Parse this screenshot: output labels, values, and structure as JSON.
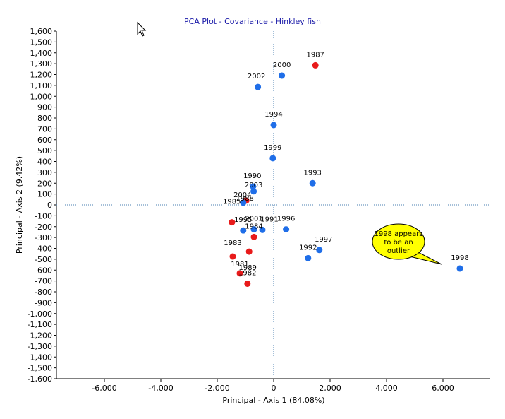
{
  "chart_data": {
    "type": "scatter",
    "title": "PCA Plot - Covariance - Hinkley fish",
    "xlabel": "Principal - Axis 1 (84.08%)",
    "ylabel": "Principal - Axis 2 (9.42%)",
    "xlim": [
      -7500,
      7500
    ],
    "ylim": [
      -1600,
      1600
    ],
    "xticks": [
      -6000,
      -4000,
      -2000,
      0,
      2000,
      4000,
      6000
    ],
    "xtick_labels": [
      "-6,000",
      "-4,000",
      "-2,000",
      "0",
      "2,000",
      "4,000",
      "6,000"
    ],
    "yticks": [
      -1600,
      -1500,
      -1400,
      -1300,
      -1200,
      -1100,
      -1000,
      -900,
      -800,
      -700,
      -600,
      -500,
      -400,
      -300,
      -200,
      -100,
      0,
      100,
      200,
      300,
      400,
      500,
      600,
      700,
      800,
      900,
      1000,
      1100,
      1200,
      1300,
      1400,
      1500,
      1600
    ],
    "ytick_labels": [
      "-1,600",
      "-1,500",
      "-1,400",
      "-1,300",
      "-1,200",
      "-1,100",
      "-1,000",
      "-900",
      "-800",
      "-700",
      "-600",
      "-500",
      "-400",
      "-300",
      "-200",
      "-100",
      "0",
      "100",
      "200",
      "300",
      "400",
      "500",
      "600",
      "700",
      "800",
      "900",
      "1,000",
      "1,100",
      "1,200",
      "1,300",
      "1,400",
      "1,500",
      "1,600"
    ],
    "grid": false,
    "reference_lines": {
      "x": 0,
      "y": 0,
      "style": "dotted",
      "color": "#4a7fb0"
    },
    "colors": {
      "blue": "#1f6ee8",
      "red": "#e81a1a"
    },
    "points": [
      {
        "label": "1987",
        "x": 1480,
        "y": 1285,
        "color": "red"
      },
      {
        "label": "2000",
        "x": 290,
        "y": 1190,
        "color": "blue"
      },
      {
        "label": "2002",
        "x": -560,
        "y": 1085,
        "color": "blue"
      },
      {
        "label": "1994",
        "x": 0,
        "y": 735,
        "color": "blue"
      },
      {
        "label": "1999",
        "x": -30,
        "y": 430,
        "color": "blue"
      },
      {
        "label": "1993",
        "x": 1380,
        "y": 200,
        "color": "blue"
      },
      {
        "label": "1990",
        "x": -730,
        "y": 170,
        "color": "blue"
      },
      {
        "label": "2003",
        "x": -710,
        "y": 125,
        "color": "blue"
      },
      {
        "label": "1988",
        "x": -970,
        "y": 40,
        "color": "red"
      },
      {
        "label": "2004",
        "x": -1080,
        "y": 20,
        "color": "blue"
      },
      {
        "label": "1985",
        "x": -1480,
        "y": -160,
        "color": "red"
      },
      {
        "label": "1995",
        "x": -1080,
        "y": -235,
        "color": "blue"
      },
      {
        "label": "2001",
        "x": -700,
        "y": -225,
        "color": "blue"
      },
      {
        "label": "1991",
        "x": -400,
        "y": -230,
        "color": "blue"
      },
      {
        "label": "1996",
        "x": 440,
        "y": -225,
        "color": "blue"
      },
      {
        "label": "1984",
        "x": -700,
        "y": -295,
        "color": "red"
      },
      {
        "label": "1989",
        "x": -870,
        "y": -430,
        "color": "red"
      },
      {
        "label": "1983",
        "x": -1450,
        "y": -475,
        "color": "red"
      },
      {
        "label": "1997",
        "x": 1620,
        "y": -415,
        "color": "blue"
      },
      {
        "label": "1992",
        "x": 1220,
        "y": -490,
        "color": "blue"
      },
      {
        "label": "1998",
        "x": 6600,
        "y": -585,
        "color": "blue"
      },
      {
        "label": "1981",
        "x": -1200,
        "y": -630,
        "color": "red"
      },
      {
        "label": "1982",
        "x": -930,
        "y": -725,
        "color": "red"
      }
    ],
    "annotations": [
      {
        "text": "1998 appears to be an outlier",
        "lines": [
          "1998 appears",
          "to be an",
          "outlier"
        ],
        "fill": "#ffff00"
      }
    ]
  }
}
